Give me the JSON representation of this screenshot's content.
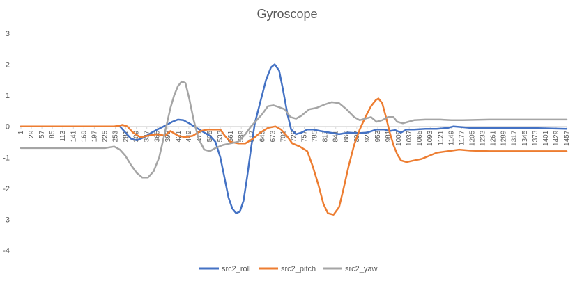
{
  "chart_data": {
    "type": "line",
    "title": "Gyroscope",
    "xlabel": "",
    "ylabel": "",
    "ylim": [
      -4,
      3
    ],
    "yticks": [
      3,
      2,
      1,
      0,
      -1,
      -2,
      -3,
      -4
    ],
    "xlim": [
      1,
      1457
    ],
    "xticks": [
      1,
      29,
      57,
      85,
      113,
      141,
      169,
      197,
      225,
      253,
      281,
      309,
      337,
      365,
      393,
      421,
      449,
      477,
      505,
      533,
      561,
      589,
      617,
      645,
      673,
      701,
      729,
      757,
      785,
      813,
      841,
      869,
      897,
      925,
      953,
      981,
      1009,
      1037,
      1065,
      1093,
      1121,
      1149,
      1177,
      1205,
      1233,
      1261,
      1289,
      1317,
      1345,
      1373,
      1401,
      1429,
      1457
    ],
    "grid": false,
    "legend_position": "bottom",
    "series": [
      {
        "name": "src2_roll",
        "color": "#4472C4",
        "points": [
          [
            1,
            0
          ],
          [
            250,
            0
          ],
          [
            265,
            0
          ],
          [
            280,
            -0.2
          ],
          [
            295,
            -0.4
          ],
          [
            310,
            -0.45
          ],
          [
            330,
            -0.35
          ],
          [
            350,
            -0.2
          ],
          [
            365,
            -0.1
          ],
          [
            390,
            0.05
          ],
          [
            405,
            0.15
          ],
          [
            420,
            0.22
          ],
          [
            435,
            0.2
          ],
          [
            450,
            0.1
          ],
          [
            470,
            -0.05
          ],
          [
            490,
            -0.2
          ],
          [
            505,
            -0.3
          ],
          [
            520,
            -0.5
          ],
          [
            533,
            -1.0
          ],
          [
            545,
            -1.7
          ],
          [
            555,
            -2.3
          ],
          [
            565,
            -2.65
          ],
          [
            575,
            -2.8
          ],
          [
            585,
            -2.75
          ],
          [
            595,
            -2.4
          ],
          [
            605,
            -1.6
          ],
          [
            615,
            -0.7
          ],
          [
            625,
            0.1
          ],
          [
            640,
            0.8
          ],
          [
            655,
            1.5
          ],
          [
            668,
            1.9
          ],
          [
            678,
            2.0
          ],
          [
            690,
            1.8
          ],
          [
            700,
            1.2
          ],
          [
            712,
            0.4
          ],
          [
            722,
            -0.1
          ],
          [
            735,
            -0.25
          ],
          [
            750,
            -0.2
          ],
          [
            765,
            -0.1
          ],
          [
            780,
            -0.1
          ],
          [
            800,
            -0.15
          ],
          [
            825,
            -0.2
          ],
          [
            850,
            -0.25
          ],
          [
            875,
            -0.2
          ],
          [
            900,
            -0.22
          ],
          [
            925,
            -0.2
          ],
          [
            950,
            -0.1
          ],
          [
            970,
            -0.1
          ],
          [
            985,
            -0.15
          ],
          [
            1000,
            -0.12
          ],
          [
            1015,
            -0.2
          ],
          [
            1030,
            -0.1
          ],
          [
            1050,
            -0.1
          ],
          [
            1080,
            -0.08
          ],
          [
            1110,
            -0.08
          ],
          [
            1140,
            -0.05
          ],
          [
            1155,
            0
          ],
          [
            1175,
            -0.02
          ],
          [
            1200,
            -0.05
          ],
          [
            1250,
            -0.05
          ],
          [
            1350,
            -0.05
          ],
          [
            1457,
            -0.08
          ]
        ]
      },
      {
        "name": "src2_pitch",
        "color": "#ED7D31",
        "points": [
          [
            1,
            0
          ],
          [
            250,
            0
          ],
          [
            262,
            0.02
          ],
          [
            272,
            0.05
          ],
          [
            285,
            0.0
          ],
          [
            300,
            -0.2
          ],
          [
            320,
            -0.35
          ],
          [
            340,
            -0.3
          ],
          [
            365,
            -0.25
          ],
          [
            385,
            -0.3
          ],
          [
            400,
            -0.15
          ],
          [
            420,
            -0.3
          ],
          [
            440,
            -0.35
          ],
          [
            460,
            -0.3
          ],
          [
            480,
            -0.15
          ],
          [
            500,
            -0.1
          ],
          [
            520,
            -0.1
          ],
          [
            533,
            -0.1
          ],
          [
            545,
            -0.3
          ],
          [
            560,
            -0.5
          ],
          [
            580,
            -0.55
          ],
          [
            600,
            -0.55
          ],
          [
            620,
            -0.4
          ],
          [
            640,
            -0.2
          ],
          [
            660,
            -0.05
          ],
          [
            680,
            0.0
          ],
          [
            695,
            -0.1
          ],
          [
            710,
            -0.3
          ],
          [
            725,
            -0.55
          ],
          [
            745,
            -0.65
          ],
          [
            765,
            -0.8
          ],
          [
            780,
            -1.3
          ],
          [
            795,
            -1.9
          ],
          [
            808,
            -2.5
          ],
          [
            820,
            -2.8
          ],
          [
            835,
            -2.85
          ],
          [
            850,
            -2.6
          ],
          [
            862,
            -2.0
          ],
          [
            875,
            -1.3
          ],
          [
            890,
            -0.6
          ],
          [
            905,
            -0.1
          ],
          [
            920,
            0.3
          ],
          [
            935,
            0.65
          ],
          [
            948,
            0.85
          ],
          [
            955,
            0.9
          ],
          [
            965,
            0.75
          ],
          [
            975,
            0.3
          ],
          [
            985,
            -0.2
          ],
          [
            995,
            -0.6
          ],
          [
            1005,
            -0.9
          ],
          [
            1015,
            -1.1
          ],
          [
            1030,
            -1.15
          ],
          [
            1050,
            -1.1
          ],
          [
            1070,
            -1.05
          ],
          [
            1090,
            -0.95
          ],
          [
            1110,
            -0.85
          ],
          [
            1140,
            -0.8
          ],
          [
            1170,
            -0.75
          ],
          [
            1200,
            -0.78
          ],
          [
            1250,
            -0.8
          ],
          [
            1350,
            -0.8
          ],
          [
            1457,
            -0.8
          ]
        ]
      },
      {
        "name": "src2_yaw",
        "color": "#A5A5A5",
        "points": [
          [
            1,
            -0.7
          ],
          [
            225,
            -0.7
          ],
          [
            250,
            -0.65
          ],
          [
            265,
            -0.75
          ],
          [
            280,
            -0.95
          ],
          [
            295,
            -1.25
          ],
          [
            310,
            -1.5
          ],
          [
            325,
            -1.65
          ],
          [
            340,
            -1.65
          ],
          [
            355,
            -1.45
          ],
          [
            370,
            -1.0
          ],
          [
            385,
            -0.2
          ],
          [
            400,
            0.6
          ],
          [
            410,
            1.0
          ],
          [
            420,
            1.3
          ],
          [
            430,
            1.45
          ],
          [
            440,
            1.4
          ],
          [
            450,
            0.9
          ],
          [
            462,
            0.2
          ],
          [
            475,
            -0.4
          ],
          [
            490,
            -0.75
          ],
          [
            505,
            -0.8
          ],
          [
            520,
            -0.7
          ],
          [
            540,
            -0.6
          ],
          [
            560,
            -0.55
          ],
          [
            580,
            -0.5
          ],
          [
            600,
            -0.25
          ],
          [
            615,
            0.0
          ],
          [
            630,
            0.2
          ],
          [
            645,
            0.4
          ],
          [
            660,
            0.65
          ],
          [
            675,
            0.68
          ],
          [
            690,
            0.62
          ],
          [
            705,
            0.55
          ],
          [
            720,
            0.3
          ],
          [
            735,
            0.25
          ],
          [
            750,
            0.35
          ],
          [
            770,
            0.55
          ],
          [
            790,
            0.6
          ],
          [
            810,
            0.7
          ],
          [
            830,
            0.78
          ],
          [
            850,
            0.75
          ],
          [
            870,
            0.55
          ],
          [
            890,
            0.3
          ],
          [
            905,
            0.2
          ],
          [
            920,
            0.25
          ],
          [
            935,
            0.3
          ],
          [
            950,
            0.15
          ],
          [
            965,
            0.2
          ],
          [
            980,
            0.3
          ],
          [
            995,
            0.3
          ],
          [
            1005,
            0.15
          ],
          [
            1020,
            0.1
          ],
          [
            1035,
            0.15
          ],
          [
            1050,
            0.2
          ],
          [
            1080,
            0.22
          ],
          [
            1120,
            0.22
          ],
          [
            1150,
            0.2
          ],
          [
            1180,
            0.2
          ],
          [
            1250,
            0.22
          ],
          [
            1350,
            0.22
          ],
          [
            1457,
            0.22
          ]
        ]
      }
    ]
  }
}
